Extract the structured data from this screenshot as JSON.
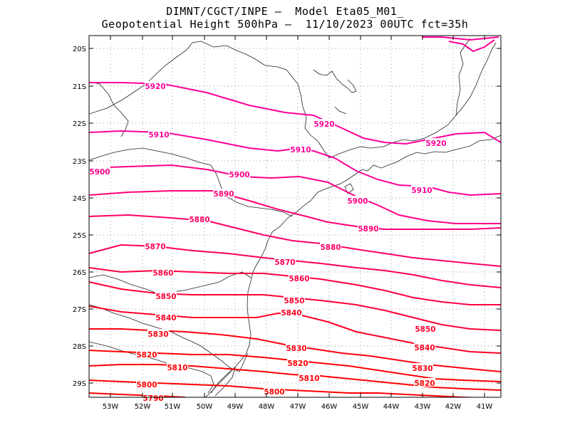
{
  "title": {
    "line1": "DIMNT/CGCT/INPE —  Model Eta05_M01_",
    "line2": "Geopotential Height 500hPa —  11/10/2023 00UTC fct=35h"
  },
  "axes": {
    "lat_labels": [
      "20S",
      "21S",
      "22S",
      "23S",
      "24S",
      "25S",
      "26S",
      "27S",
      "28S",
      "29S"
    ],
    "lon_labels": [
      "53W",
      "52W",
      "51W",
      "50W",
      "49W",
      "48W",
      "47W",
      "46W",
      "45W",
      "44W",
      "43W",
      "42W",
      "41W"
    ]
  },
  "contour_labels": [
    {
      "value": "5920",
      "color": "#ff0099"
    },
    {
      "value": "5920",
      "color": "#ff0099"
    },
    {
      "value": "5920",
      "color": "#ff0099"
    },
    {
      "value": "5910",
      "color": "#ff0099"
    },
    {
      "value": "5910",
      "color": "#ff0099"
    },
    {
      "value": "5910",
      "color": "#ff0099"
    },
    {
      "value": "5900",
      "color": "#ff0088"
    },
    {
      "value": "5900",
      "color": "#ff0088"
    },
    {
      "value": "5900",
      "color": "#ff0088"
    },
    {
      "value": "5890",
      "color": "#ff0077"
    },
    {
      "value": "5890",
      "color": "#ff0077"
    },
    {
      "value": "5880",
      "color": "#ff0066"
    },
    {
      "value": "5880",
      "color": "#ff0066"
    },
    {
      "value": "5870",
      "color": "#ff0055"
    },
    {
      "value": "5870",
      "color": "#ff0055"
    },
    {
      "value": "5860",
      "color": "#ff0044"
    },
    {
      "value": "5860",
      "color": "#ff0044"
    },
    {
      "value": "5850",
      "color": "#ff0033"
    },
    {
      "value": "5850",
      "color": "#ff0033"
    },
    {
      "value": "5850",
      "color": "#ff0033"
    },
    {
      "value": "5840",
      "color": "#ff0022"
    },
    {
      "value": "5840",
      "color": "#ff0022"
    },
    {
      "value": "5840",
      "color": "#ff0022"
    },
    {
      "value": "5830",
      "color": "#ff0011"
    },
    {
      "value": "5830",
      "color": "#ff0011"
    },
    {
      "value": "5830",
      "color": "#ff0011"
    },
    {
      "value": "5820",
      "color": "#ff0000"
    },
    {
      "value": "5820",
      "color": "#ff0000"
    },
    {
      "value": "5820",
      "color": "#ff0000"
    },
    {
      "value": "5810",
      "color": "#ff0000"
    },
    {
      "value": "5810",
      "color": "#ff0000"
    },
    {
      "value": "5800",
      "color": "#ff0000"
    },
    {
      "value": "5800",
      "color": "#ff0000"
    },
    {
      "value": "5790",
      "color": "#ff0000"
    }
  ]
}
